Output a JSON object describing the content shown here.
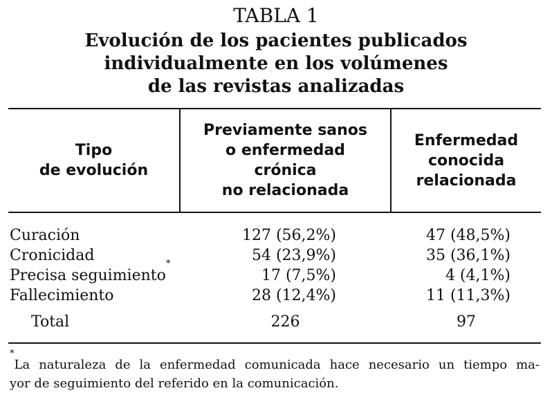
{
  "table": {
    "label": "TABLA 1",
    "title_lines": [
      "Evolución de los pacientes publicados",
      "individualmente en los volúmenes",
      "de las revistas analizadas"
    ],
    "headers": {
      "col1": [
        "Tipo",
        "de evolución"
      ],
      "col2": [
        "Previamente sanos",
        "o enfermedad",
        "crónica",
        "no relacionada"
      ],
      "col3": [
        "Enfermedad",
        "conocida",
        "relacionada"
      ]
    },
    "rows": [
      {
        "type": "Curación",
        "marker": "",
        "col2": "127 (56,2%)",
        "col3": "47 (48,5%)"
      },
      {
        "type": "Cronicidad",
        "marker": "",
        "col2": "54 (23,9%)",
        "col3": "35 (36,1%)"
      },
      {
        "type": "Precisa seguimiento",
        "marker": "*",
        "col2": "17 (7,5%)",
        "col3": "4 (4,1%)"
      },
      {
        "type": "Fallecimiento",
        "marker": "",
        "col2": "28 (12,4%)",
        "col3": "11 (11,3%)"
      }
    ],
    "total": {
      "label": "Total",
      "col2": "226",
      "col3": "97"
    },
    "footnote": {
      "marker": "*",
      "line1": "La naturaleza de la enfermedad comunicada hace necesario un tiempo ma-",
      "line2": "yor de seguimiento del referido en la comunicación."
    }
  }
}
